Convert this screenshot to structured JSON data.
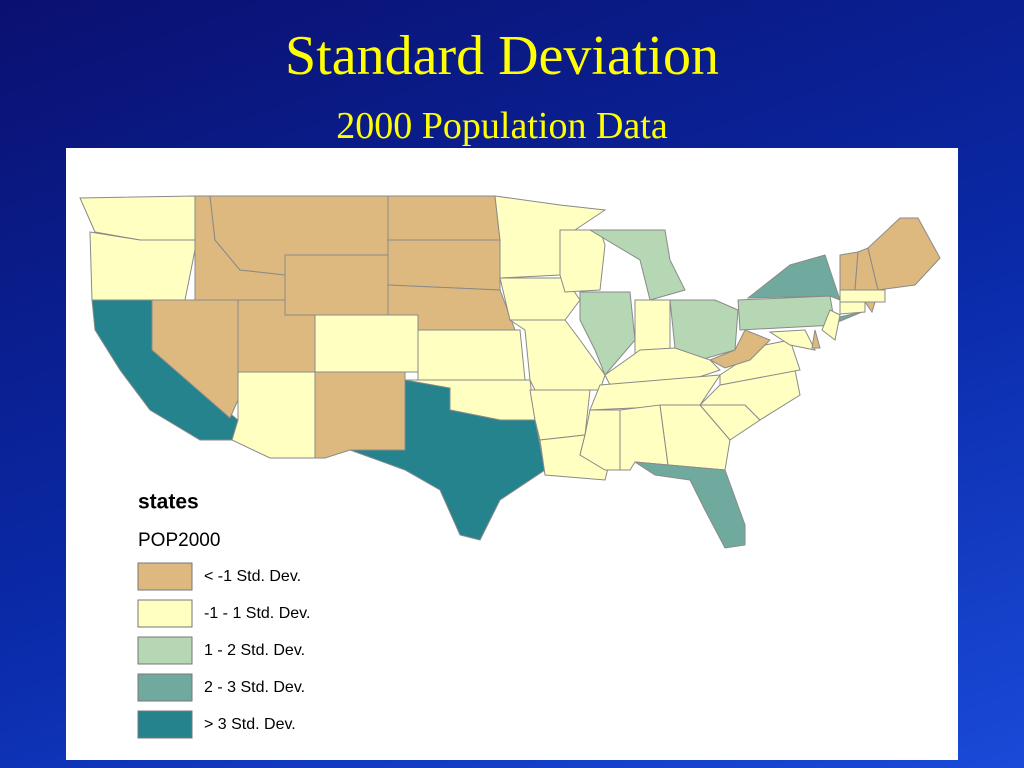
{
  "header": {
    "title": "Standard Deviation",
    "subtitle": "2000 Population Data"
  },
  "legend": {
    "layer": "states",
    "field": "POP2000",
    "items": [
      {
        "label": "< -1 Std. Dev.",
        "color": "#ddb97f"
      },
      {
        "label": "-1 - 1 Std. Dev.",
        "color": "#ffffc2"
      },
      {
        "label": "1 - 2 Std. Dev.",
        "color": "#b6d7b4"
      },
      {
        "label": "2 - 3 Std. Dev.",
        "color": "#70aa9f"
      },
      {
        "label": "> 3 Std. Dev.",
        "color": "#24838c"
      }
    ]
  }
}
